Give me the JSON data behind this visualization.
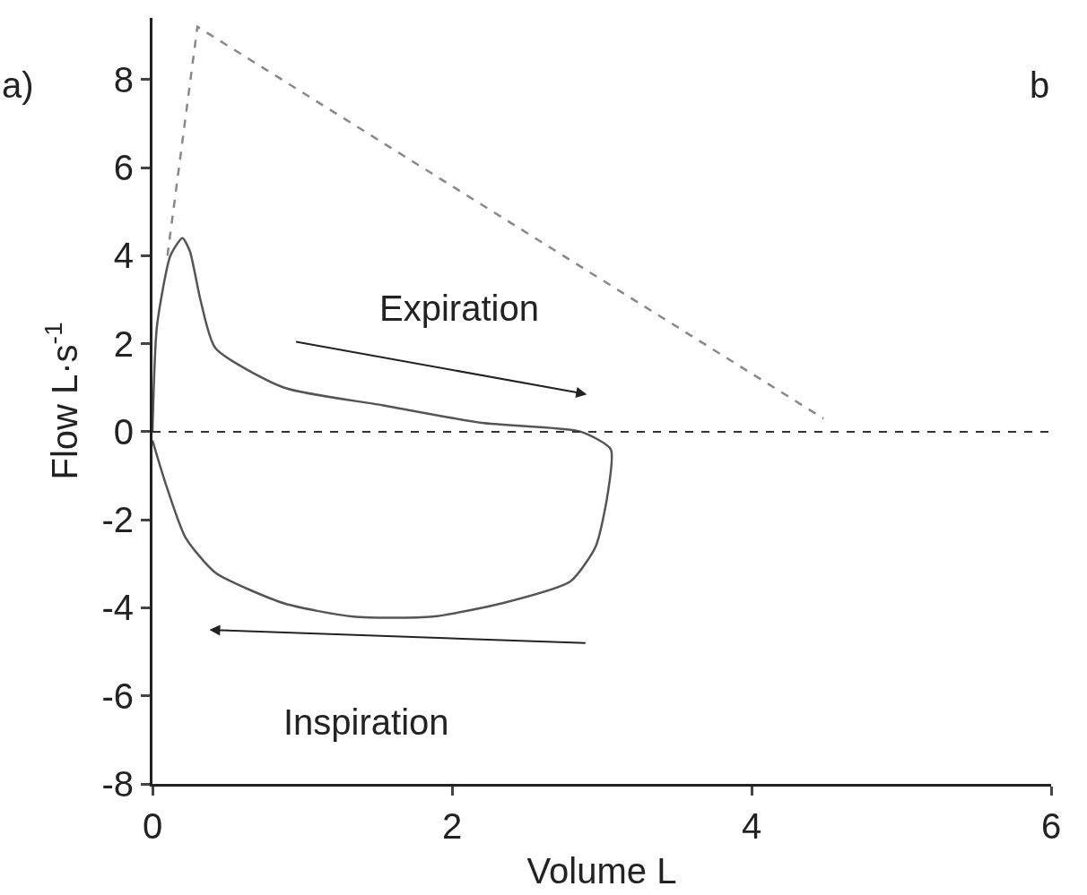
{
  "chart_data": {
    "type": "line",
    "xlabel": "Volume L",
    "ylabel": "Flow L·s$^{-1}$",
    "xlim": [
      0,
      6
    ],
    "xticks": [
      0,
      2,
      4,
      6
    ],
    "ylim": [
      -8,
      9.4
    ],
    "yticks": [
      -8,
      -6,
      -4,
      -2,
      0,
      2,
      4,
      6,
      8
    ],
    "marker": "none",
    "series": [
      {
        "color": "#555555",
        "line_style": "solid",
        "x": [
          0,
          0.03,
          0.12,
          0.2,
          0.25,
          0.32,
          0.42,
          0.88,
          1.54,
          2.2,
          2.86,
          3.06,
          3.04,
          2.96,
          2.79,
          2.33,
          1.87,
          1.34,
          0.88,
          0.42,
          0.22,
          0.09,
          0
        ],
        "values": [
          0,
          2.4,
          4.0,
          4.4,
          4.1,
          3.0,
          1.9,
          1.0,
          0.6,
          0.2,
          0.0,
          -0.4,
          -1.4,
          -2.6,
          -3.4,
          -3.9,
          -4.2,
          -4.2,
          -3.9,
          -3.2,
          -2.4,
          -1.2,
          -0.2
        ]
      },
      {
        "color": "#888888",
        "line_style": "dashed",
        "x": [
          0.1,
          0.3,
          4.48
        ],
        "values": [
          4.0,
          9.2,
          0.3
        ]
      }
    ],
    "ref_lines": [
      {
        "axis": "y",
        "value": 0,
        "color": "#333333",
        "line_style": "dashed"
      }
    ],
    "annotations": [
      "a)",
      "b",
      "Expiration",
      "Inspiration"
    ]
  }
}
